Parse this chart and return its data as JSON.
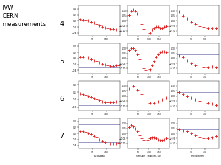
{
  "title": "IVW\nCERN\nmeasurements",
  "row_labels": [
    "4",
    "5",
    "6",
    "7"
  ],
  "col_xlabels": [
    "Eurospan",
    "Groupe - Hapon(2G)",
    "Photometry"
  ],
  "nrows": 4,
  "ncols": 3,
  "blue_line_color": "#8888bb",
  "red_marker_color": "#dd2222",
  "background": "#ffffff",
  "rows": [
    [
      {
        "ylim": [
          -0.5,
          0.5
        ],
        "xlim": [
          0,
          150
        ],
        "blue_y": [
          0.3,
          -0.3
        ],
        "data_x": [
          5,
          15,
          25,
          35,
          45,
          55,
          65,
          75,
          85,
          95,
          105,
          115,
          125,
          135,
          145
        ],
        "data_y": [
          0.05,
          0.04,
          0.02,
          0.0,
          -0.03,
          -0.07,
          -0.11,
          -0.15,
          -0.19,
          -0.22,
          -0.24,
          -0.26,
          -0.27,
          -0.28,
          -0.28
        ],
        "yticks": [
          0.4,
          0.2,
          0.0,
          -0.2,
          -0.4
        ],
        "xticks": [
          50,
          100
        ]
      },
      {
        "ylim": [
          -0.15,
          0.15
        ],
        "xlim": [
          0,
          200
        ],
        "blue_y": [],
        "data_x": [
          5,
          15,
          25,
          35,
          45,
          55,
          65,
          75,
          85,
          95,
          105,
          115,
          125,
          135,
          145,
          155,
          165,
          175,
          185
        ],
        "data_y": [
          0.06,
          0.1,
          0.11,
          0.1,
          0.07,
          0.02,
          -0.03,
          -0.08,
          -0.11,
          -0.13,
          -0.12,
          -0.09,
          -0.07,
          -0.06,
          -0.06,
          -0.07,
          -0.07,
          -0.06,
          -0.05
        ],
        "yticks": [
          0.1,
          0.05,
          0.0,
          -0.05,
          -0.1
        ],
        "xticks": [
          50,
          100,
          150
        ]
      },
      {
        "ylim": [
          -0.15,
          0.15
        ],
        "xlim": [
          0,
          150
        ],
        "blue_y": [
          0.04
        ],
        "data_x": [
          5,
          20,
          35,
          50,
          65,
          80,
          95,
          110,
          125,
          140
        ],
        "data_y": [
          0.09,
          0.05,
          0.02,
          -0.01,
          -0.03,
          -0.05,
          -0.06,
          -0.07,
          -0.07,
          -0.07
        ],
        "yticks": [
          0.1,
          0.05,
          0.0,
          -0.05,
          -0.1
        ],
        "xticks": [
          50,
          100
        ]
      }
    ],
    [
      {
        "ylim": [
          -0.5,
          0.5
        ],
        "xlim": [
          0,
          150
        ],
        "blue_y": [
          0.3,
          -0.3
        ],
        "data_x": [
          5,
          15,
          25,
          35,
          45,
          55,
          65,
          75,
          85,
          95,
          105,
          115,
          125,
          135,
          145
        ],
        "data_y": [
          0.04,
          0.04,
          0.03,
          0.01,
          -0.02,
          -0.06,
          -0.1,
          -0.14,
          -0.18,
          -0.21,
          -0.24,
          -0.25,
          -0.25,
          -0.24,
          -0.23
        ],
        "yticks": [
          0.4,
          0.2,
          0.0,
          -0.2,
          -0.4
        ],
        "xticks": [
          50,
          100
        ]
      },
      {
        "ylim": [
          -0.15,
          0.15
        ],
        "xlim": [
          0,
          200
        ],
        "blue_y": [],
        "data_x": [
          5,
          15,
          25,
          35,
          45,
          55,
          65,
          75,
          85,
          95,
          105,
          115,
          125,
          135,
          145,
          155,
          165,
          175,
          185
        ],
        "data_y": [
          0.08,
          0.1,
          0.1,
          0.08,
          0.04,
          -0.01,
          -0.06,
          -0.1,
          -0.12,
          -0.13,
          -0.11,
          -0.07,
          -0.03,
          0.01,
          0.04,
          0.06,
          0.07,
          0.07,
          0.06
        ],
        "yticks": [
          0.1,
          0.05,
          0.0,
          -0.05,
          -0.1
        ],
        "xticks": [
          50,
          100,
          150
        ]
      },
      {
        "ylim": [
          -0.15,
          0.15
        ],
        "xlim": [
          0,
          150
        ],
        "blue_y": [
          0.04
        ],
        "data_x": [
          5,
          20,
          35,
          50,
          65,
          80,
          95,
          110,
          125,
          140
        ],
        "data_y": [
          0.03,
          0.01,
          -0.02,
          -0.05,
          -0.07,
          -0.08,
          -0.09,
          -0.09,
          -0.08,
          -0.09
        ],
        "yticks": [
          0.1,
          0.05,
          0.0,
          -0.05,
          -0.1
        ],
        "xticks": [
          50,
          100
        ]
      }
    ],
    [
      {
        "ylim": [
          -0.4,
          0.4
        ],
        "xlim": [
          0,
          150
        ],
        "blue_y": [
          0.25,
          -0.25
        ],
        "data_x": [
          5,
          15,
          25,
          35,
          45,
          55,
          65,
          75,
          85,
          95,
          105,
          115,
          125,
          135,
          145
        ],
        "data_y": [
          0.06,
          0.04,
          0.02,
          0.0,
          -0.03,
          -0.06,
          -0.09,
          -0.12,
          -0.15,
          -0.17,
          -0.18,
          -0.18,
          -0.17,
          -0.16,
          -0.15
        ],
        "yticks": [
          0.3,
          0.1,
          -0.1,
          -0.3
        ],
        "xticks": [
          50,
          100
        ]
      },
      {
        "ylim": [
          -0.15,
          0.15
        ],
        "xlim": [
          0,
          200
        ],
        "blue_y": [],
        "data_x": [
          5,
          25,
          45,
          65,
          85,
          105,
          125,
          145,
          165,
          185
        ],
        "data_y": [
          0.07,
          0.1,
          0.06,
          0.02,
          -0.04,
          -0.07,
          -0.07,
          -0.06,
          -0.04,
          -0.02
        ],
        "yticks": [
          0.1,
          0.05,
          0.0,
          -0.05,
          -0.1
        ],
        "xticks": [
          50,
          100,
          150
        ]
      },
      {
        "ylim": [
          -0.15,
          0.15
        ],
        "xlim": [
          0,
          150
        ],
        "blue_y": [
          0.04
        ],
        "data_x": [
          5,
          20,
          35,
          50,
          65,
          80,
          95,
          110,
          125,
          140
        ],
        "data_y": [
          0.04,
          0.02,
          0.0,
          -0.02,
          -0.04,
          -0.05,
          -0.06,
          -0.07,
          -0.08,
          -0.09
        ],
        "yticks": [
          0.1,
          0.05,
          0.0,
          -0.05,
          -0.1
        ],
        "xticks": [
          50,
          100
        ]
      }
    ],
    [
      {
        "ylim": [
          -0.5,
          0.5
        ],
        "xlim": [
          0,
          150
        ],
        "blue_y": [
          0.3,
          -0.3
        ],
        "data_x": [
          5,
          15,
          25,
          35,
          45,
          55,
          65,
          75,
          85,
          95,
          105,
          115,
          125,
          135,
          145
        ],
        "data_y": [
          0.07,
          0.06,
          0.04,
          0.01,
          -0.03,
          -0.08,
          -0.14,
          -0.2,
          -0.26,
          -0.3,
          -0.33,
          -0.34,
          -0.34,
          -0.33,
          -0.32
        ],
        "yticks": [
          0.4,
          0.2,
          0.0,
          -0.2,
          -0.4
        ],
        "xticks": [
          50,
          100
        ]
      },
      {
        "ylim": [
          -0.15,
          0.15
        ],
        "xlim": [
          0,
          200
        ],
        "blue_y": [],
        "data_x": [
          5,
          15,
          25,
          35,
          45,
          55,
          65,
          75,
          85,
          95,
          105,
          115,
          125,
          135,
          145,
          155,
          165,
          175,
          185
        ],
        "data_y": [
          0.06,
          0.08,
          0.07,
          0.05,
          0.02,
          -0.02,
          -0.05,
          -0.07,
          -0.08,
          -0.07,
          -0.05,
          -0.04,
          -0.04,
          -0.05,
          -0.06,
          -0.07,
          -0.07,
          -0.06,
          -0.05
        ],
        "yticks": [
          0.1,
          0.05,
          0.0,
          -0.05,
          -0.1
        ],
        "xticks": [
          50,
          100,
          150
        ]
      },
      {
        "ylim": [
          -0.15,
          0.15
        ],
        "xlim": [
          0,
          150
        ],
        "blue_y": [
          0.04
        ],
        "data_x": [
          5,
          20,
          35,
          50,
          65,
          80,
          95,
          110,
          125,
          140
        ],
        "data_y": [
          0.04,
          0.03,
          0.02,
          0.0,
          -0.02,
          -0.04,
          -0.05,
          -0.05,
          -0.04,
          -0.03
        ],
        "yticks": [
          0.1,
          0.05,
          0.0,
          -0.05,
          -0.1
        ],
        "xticks": [
          50,
          100
        ]
      }
    ]
  ]
}
